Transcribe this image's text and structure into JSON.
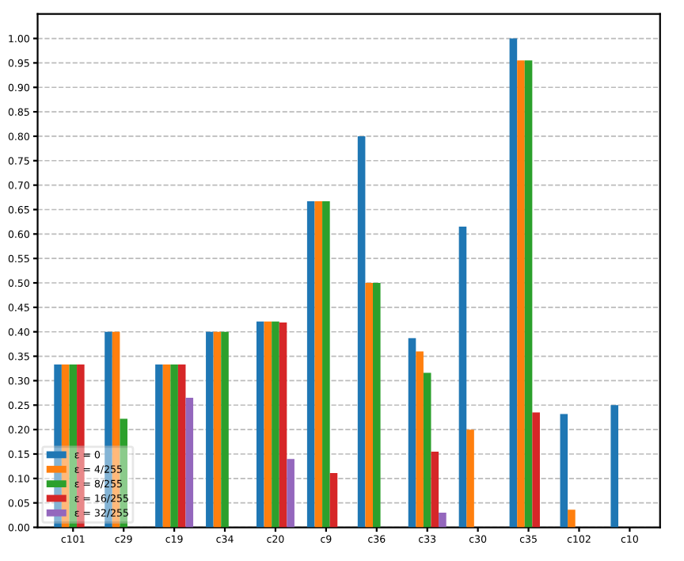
{
  "chart_data": {
    "type": "bar",
    "categories": [
      "c101",
      "c29",
      "c19",
      "c34",
      "c20",
      "c9",
      "c36",
      "c33",
      "c30",
      "c35",
      "c102",
      "c10"
    ],
    "series": [
      {
        "name": "ε = 0",
        "color": "#1f77b4",
        "values": [
          0.333,
          0.4,
          0.333,
          0.4,
          0.421,
          0.667,
          0.8,
          0.387,
          0.615,
          1.0,
          0.232,
          0.25
        ]
      },
      {
        "name": "ε = 4/255",
        "color": "#ff7f0e",
        "values": [
          0.333,
          0.4,
          0.333,
          0.4,
          0.421,
          0.667,
          0.5,
          0.36,
          0.2,
          0.955,
          0.036,
          0
        ]
      },
      {
        "name": "ε = 8/255",
        "color": "#2ca02c",
        "values": [
          0.333,
          0.222,
          0.333,
          0.4,
          0.421,
          0.667,
          0.5,
          0.316,
          0,
          0.955,
          0,
          0
        ]
      },
      {
        "name": "ε = 16/255",
        "color": "#d62728",
        "values": [
          0.333,
          0,
          0.333,
          0,
          0.419,
          0.111,
          0,
          0.155,
          0,
          0.235,
          0,
          0
        ]
      },
      {
        "name": "ε = 32/255",
        "color": "#9467bd",
        "values": [
          0,
          0,
          0.265,
          0,
          0.14,
          0,
          0,
          0.03,
          0,
          0,
          0,
          0
        ]
      }
    ],
    "ylim": [
      0,
      1.05
    ],
    "yticks": [
      {
        "value": 0,
        "label": "0.00"
      },
      {
        "value": 0.05,
        "label": "0.05"
      },
      {
        "value": 0.1,
        "label": "0.10"
      },
      {
        "value": 0.15,
        "label": "0.15"
      },
      {
        "value": 0.2,
        "label": "0.20"
      },
      {
        "value": 0.25,
        "label": "0.25"
      },
      {
        "value": 0.3,
        "label": "0.30"
      },
      {
        "value": 0.35,
        "label": "0.35"
      },
      {
        "value": 0.4,
        "label": "0.40"
      },
      {
        "value": 0.45,
        "label": "0.45"
      },
      {
        "value": 0.5,
        "label": "0.50"
      },
      {
        "value": 0.55,
        "label": "0.55"
      },
      {
        "value": 0.6,
        "label": "0.60"
      },
      {
        "value": 0.65,
        "label": "0.65"
      },
      {
        "value": 0.7,
        "label": "0.70"
      },
      {
        "value": 0.75,
        "label": "0.75"
      },
      {
        "value": 0.8,
        "label": "0.80"
      },
      {
        "value": 0.85,
        "label": "0.85"
      },
      {
        "value": 0.9,
        "label": "0.90"
      },
      {
        "value": 0.95,
        "label": "0.95"
      },
      {
        "value": 1.0,
        "label": "1.00"
      }
    ],
    "grid": "y",
    "legend": "bottom left"
  }
}
